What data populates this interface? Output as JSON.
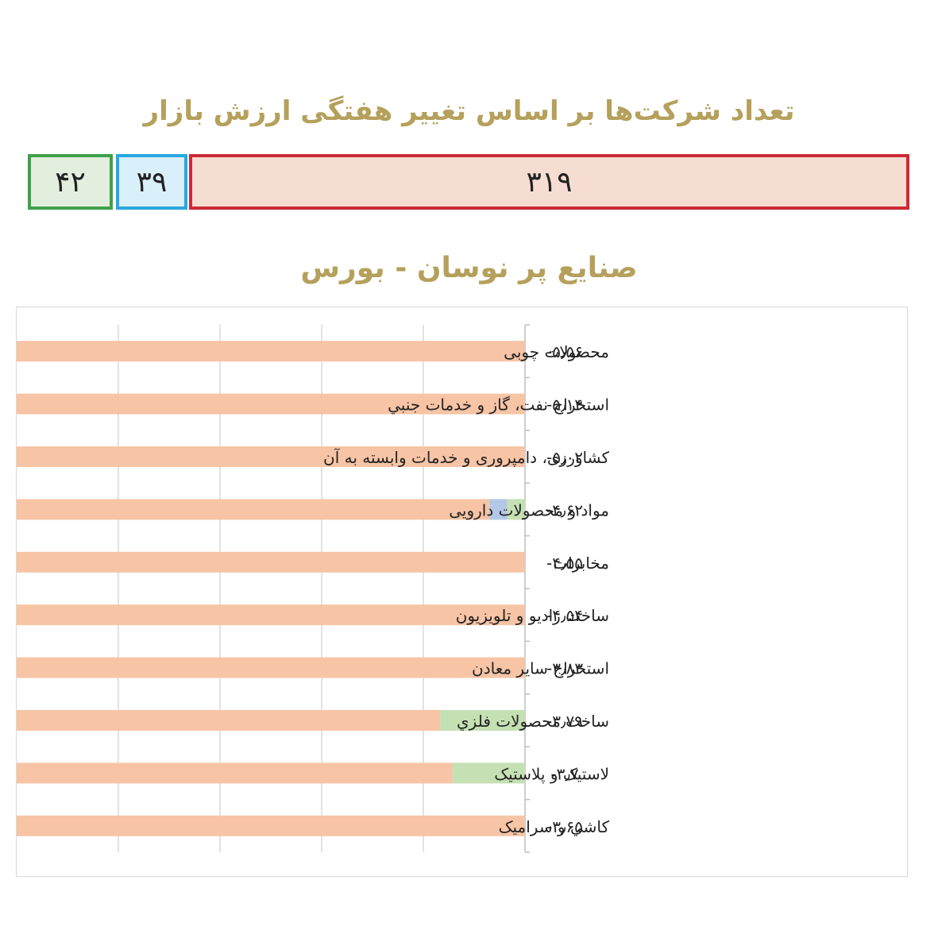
{
  "header": {
    "title": "تعداد شرکت‌ها بر اساس تغییر هفتگی ارزش بازار"
  },
  "counts": {
    "negative": "۳۱۹",
    "neutral": "۳۹",
    "positive": "۴۲",
    "colors": {
      "negative": "#cc2a36",
      "neutral": "#2aa7df",
      "positive": "#3fa14a"
    }
  },
  "subtitle": "صنایع پر نوسان - بورس",
  "chart_data": {
    "type": "bar",
    "orientation": "horizontal",
    "grid": true,
    "colors": {
      "down": "#f7c4a5",
      "up": "#c5e0b3",
      "neutral": "#b4c7e7"
    },
    "categories": [
      "محصولات چوبی",
      "استخراج نفت، گاز و خدمات جنبي",
      "کشاورزی، دامپروری و خدمات وابسته به آن",
      "مواد و محصولات دارویی",
      "مخابرات",
      "ساخت رادیو و تلویزیون",
      "استخراج سایر معادن",
      "ساخت محصولات فلزي",
      "لاستیک و پلاستیک",
      "کاشي و سرامیک"
    ],
    "value_labels": [
      "-۵٫۵۶",
      "-۵٫۱۴",
      "-۵٫۰۲",
      "-۴٫۶۲",
      "-۴٫۵۵",
      "-۴٫۵۴",
      "-۳٫۸۳",
      "-۳٫۷۹",
      "-۳٫۷",
      "-۳٫۶۵"
    ],
    "values": [
      -5.56,
      -5.14,
      -5.02,
      -4.62,
      -4.55,
      -4.54,
      -3.83,
      -3.79,
      -3.7,
      -3.65
    ],
    "down_share": [
      1.0,
      1.0,
      1.0,
      0.93,
      1.0,
      1.0,
      1.0,
      0.833,
      0.857,
      1.0
    ],
    "neutral_share": [
      0,
      0,
      0,
      0.035,
      0,
      0,
      0,
      0,
      0,
      0
    ],
    "up_share": [
      0,
      0,
      0,
      0.035,
      0,
      0,
      0,
      0.167,
      0.143,
      0
    ],
    "xlim": [
      0,
      1
    ]
  }
}
